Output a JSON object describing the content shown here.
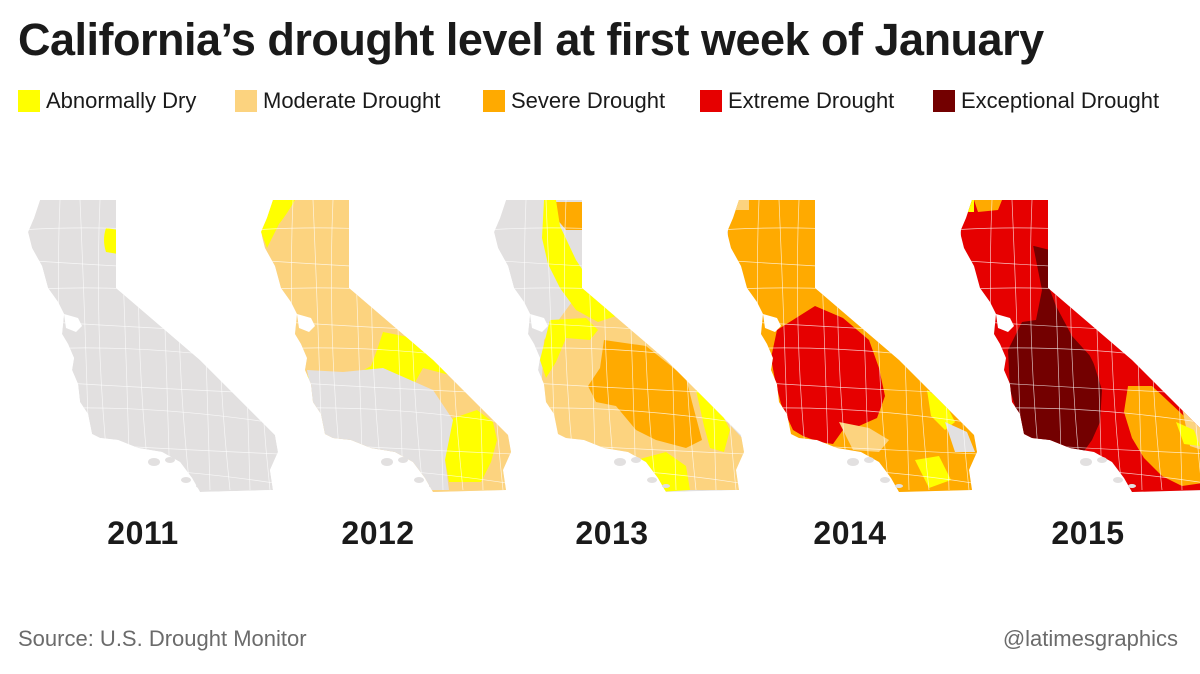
{
  "title": "California’s drought level at first week of January",
  "legend": [
    {
      "label": "Abnormally Dry",
      "color": "#ffff00"
    },
    {
      "label": "Moderate Drought",
      "color": "#fcd37f"
    },
    {
      "label": "Severe Drought",
      "color": "#ffaa00"
    },
    {
      "label": "Extreme Drought",
      "color": "#e60000"
    },
    {
      "label": "Exceptional Drought",
      "color": "#730000"
    }
  ],
  "maps": [
    {
      "year": "2011"
    },
    {
      "year": "2012"
    },
    {
      "year": "2013"
    },
    {
      "year": "2014"
    },
    {
      "year": "2015"
    }
  ],
  "base_color": "#e2e0e0",
  "source": "Source: U.S. Drought Monitor",
  "credit": "@latimesgraphics"
}
